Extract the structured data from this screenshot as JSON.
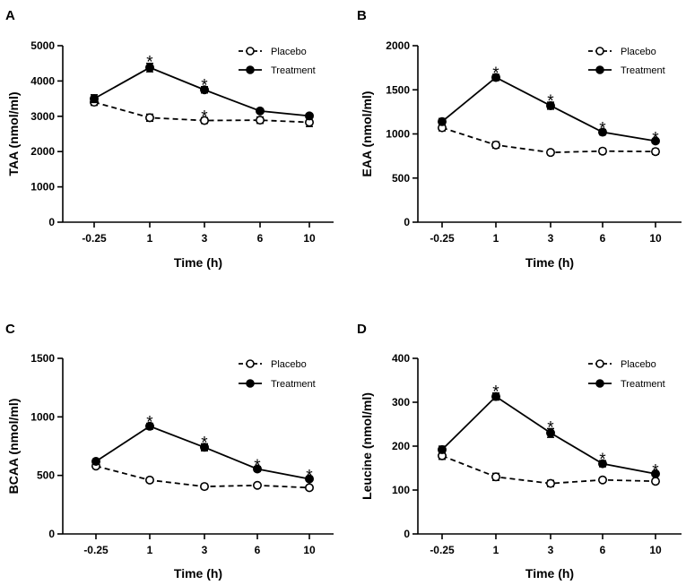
{
  "chart_data": [
    {
      "panel": "A",
      "type": "line",
      "ylabel": "TAA (nmol/ml)",
      "xlabel": "Time (h)",
      "categories": [
        "-0.25",
        "1",
        "3",
        "6",
        "10"
      ],
      "ylim": [
        0,
        5000
      ],
      "yticks": [
        "0",
        "1000",
        "2000",
        "3000",
        "4000",
        "5000"
      ],
      "yticks_values": [
        0,
        1000,
        2000,
        3000,
        4000,
        5000
      ],
      "legend": [
        "Placebo",
        "Treatment"
      ],
      "series": [
        {
          "name": "Placebo",
          "values": [
            3400,
            2960,
            2880,
            2890,
            2830
          ],
          "errors": [
            90,
            100,
            80,
            90,
            120
          ],
          "style": "dashed-open"
        },
        {
          "name": "Treatment",
          "values": [
            3500,
            4380,
            3750,
            3150,
            3010
          ],
          "errors": [
            110,
            120,
            90,
            60,
            60
          ],
          "style": "solid-filled"
        }
      ],
      "stars_on": [
        "1",
        "3",
        "3"
      ],
      "stars_series": [
        "Treatment",
        "Treatment",
        "Placebo"
      ],
      "star_symbol": "*"
    },
    {
      "panel": "B",
      "type": "line",
      "ylabel": "EAA (nmol/ml)",
      "xlabel": "Time (h)",
      "categories": [
        "-0.25",
        "1",
        "3",
        "6",
        "10"
      ],
      "ylim": [
        0,
        2000
      ],
      "yticks": [
        "0",
        "500",
        "1000",
        "1500",
        "2000"
      ],
      "yticks_values": [
        0,
        500,
        1000,
        1500,
        2000
      ],
      "legend": [
        "Placebo",
        "Treatment"
      ],
      "series": [
        {
          "name": "Placebo",
          "values": [
            1070,
            875,
            790,
            805,
            800
          ],
          "errors": [
            35,
            35,
            25,
            30,
            30
          ],
          "style": "dashed-open"
        },
        {
          "name": "Treatment",
          "values": [
            1140,
            1640,
            1320,
            1020,
            920
          ],
          "errors": [
            35,
            35,
            40,
            30,
            20
          ],
          "style": "solid-filled"
        }
      ],
      "stars_on": [
        "1",
        "3",
        "6",
        "10"
      ],
      "stars_series": [
        "Treatment",
        "Treatment",
        "Treatment",
        "Treatment"
      ],
      "star_symbol": "*"
    },
    {
      "panel": "C",
      "type": "line",
      "ylabel": "BCAA (nmol/ml)",
      "xlabel": "Time (h)",
      "categories": [
        "-0.25",
        "1",
        "3",
        "6",
        "10"
      ],
      "ylim": [
        0,
        1500
      ],
      "yticks": [
        "0",
        "500",
        "1000",
        "1500"
      ],
      "yticks_values": [
        0,
        500,
        1000,
        1500
      ],
      "legend": [
        "Placebo",
        "Treatment"
      ],
      "series": [
        {
          "name": "Placebo",
          "values": [
            580,
            460,
            405,
            415,
            395
          ],
          "errors": [
            20,
            20,
            20,
            15,
            15
          ],
          "style": "dashed-open"
        },
        {
          "name": "Treatment",
          "values": [
            620,
            920,
            740,
            555,
            470
          ],
          "errors": [
            20,
            25,
            30,
            20,
            15
          ],
          "style": "solid-filled"
        }
      ],
      "stars_on": [
        "1",
        "3",
        "6",
        "10"
      ],
      "stars_series": [
        "Treatment",
        "Treatment",
        "Treatment",
        "Treatment"
      ],
      "star_symbol": "*"
    },
    {
      "panel": "D",
      "type": "line",
      "ylabel": "Leucine (nmol/ml)",
      "xlabel": "Time (h)",
      "categories": [
        "-0.25",
        "1",
        "3",
        "6",
        "10"
      ],
      "ylim": [
        0,
        400
      ],
      "yticks": [
        "0",
        "100",
        "200",
        "300",
        "400"
      ],
      "yticks_values": [
        0,
        100,
        200,
        300,
        400
      ],
      "legend": [
        "Placebo",
        "Treatment"
      ],
      "series": [
        {
          "name": "Placebo",
          "values": [
            178,
            130,
            115,
            123,
            120
          ],
          "errors": [
            8,
            8,
            7,
            5,
            5
          ],
          "style": "dashed-open"
        },
        {
          "name": "Treatment",
          "values": [
            192,
            313,
            230,
            160,
            137
          ],
          "errors": [
            8,
            8,
            10,
            7,
            5
          ],
          "style": "solid-filled"
        }
      ],
      "stars_on": [
        "1",
        "3",
        "6",
        "10"
      ],
      "stars_series": [
        "Treatment",
        "Treatment",
        "Treatment",
        "Treatment"
      ],
      "star_symbol": "*"
    }
  ]
}
